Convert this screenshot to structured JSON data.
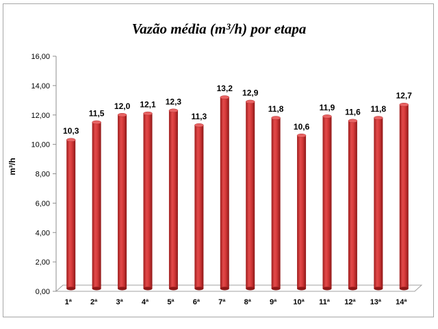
{
  "chart_data": {
    "type": "bar",
    "title": "Vazão média (m³/h) por etapa",
    "ylabel": "m³/h",
    "xlabel": "",
    "categories": [
      "1ª",
      "2ª",
      "3ª",
      "4ª",
      "5ª",
      "6ª",
      "7ª",
      "8ª",
      "9ª",
      "10ª",
      "11ª",
      "12ª",
      "13ª",
      "14ª"
    ],
    "values": [
      10.3,
      11.5,
      12.0,
      12.1,
      12.3,
      11.3,
      13.2,
      12.9,
      11.8,
      10.6,
      11.9,
      11.6,
      11.8,
      12.7
    ],
    "value_labels": [
      "10,3",
      "11,5",
      "12,0",
      "12,1",
      "12,3",
      "11,3",
      "13,2",
      "12,9",
      "11,8",
      "10,6",
      "11,9",
      "11,6",
      "11,8",
      "12,7"
    ],
    "ylim": [
      0,
      16
    ],
    "yticks": [
      "0,00",
      "2,00",
      "4,00",
      "6,00",
      "8,00",
      "10,00",
      "12,00",
      "14,00",
      "16,00"
    ],
    "grid": false,
    "legend": "none",
    "bar_color": "#d63a3a"
  }
}
